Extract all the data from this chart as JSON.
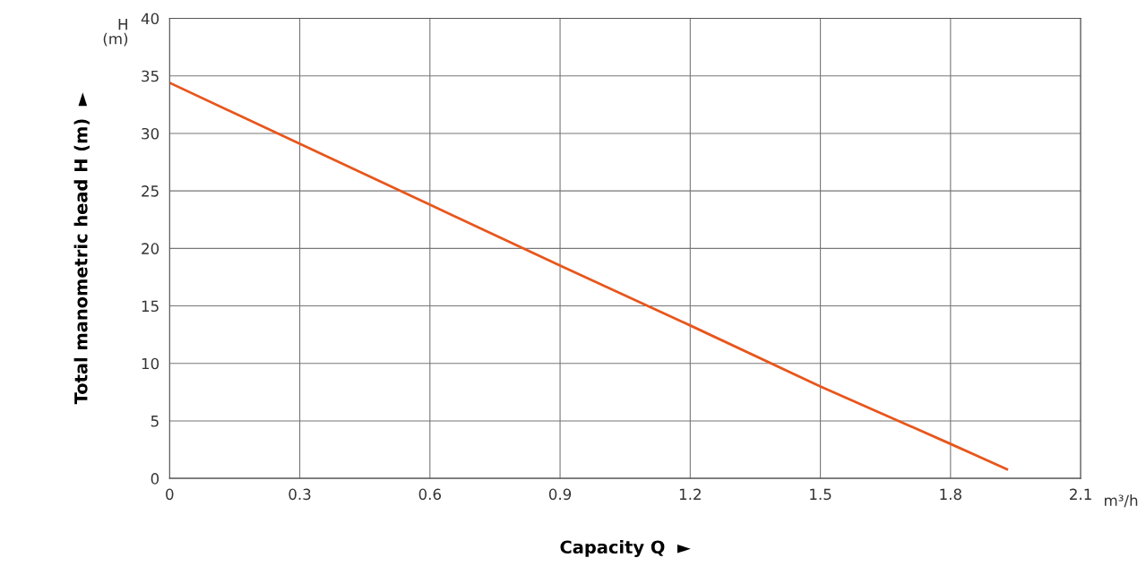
{
  "chart_data": {
    "type": "line",
    "xlabel": "Capacity Q  ►",
    "ylabel": "Total manometric head H (m)  ►",
    "annotations": [
      "H\n(m)",
      "m³/h"
    ],
    "x": [
      0,
      0.3,
      0.6,
      0.9,
      1.2,
      1.5,
      1.8,
      1.93
    ],
    "series": [
      {
        "color": "#e8561c",
        "values": [
          34.4,
          29.1,
          23.8,
          18.5,
          13.3,
          8.0,
          3.0,
          0.8
        ]
      }
    ],
    "xlim": [
      0,
      2.1
    ],
    "ylim": [
      0,
      40
    ],
    "xticks": [
      0,
      0.3,
      0.6,
      0.9,
      1.2,
      1.5,
      1.8,
      2.1
    ],
    "yticks": [
      0,
      5,
      10,
      15,
      20,
      25,
      30,
      35,
      40
    ],
    "grid": true,
    "marker": "none",
    "line_style": "solid"
  }
}
